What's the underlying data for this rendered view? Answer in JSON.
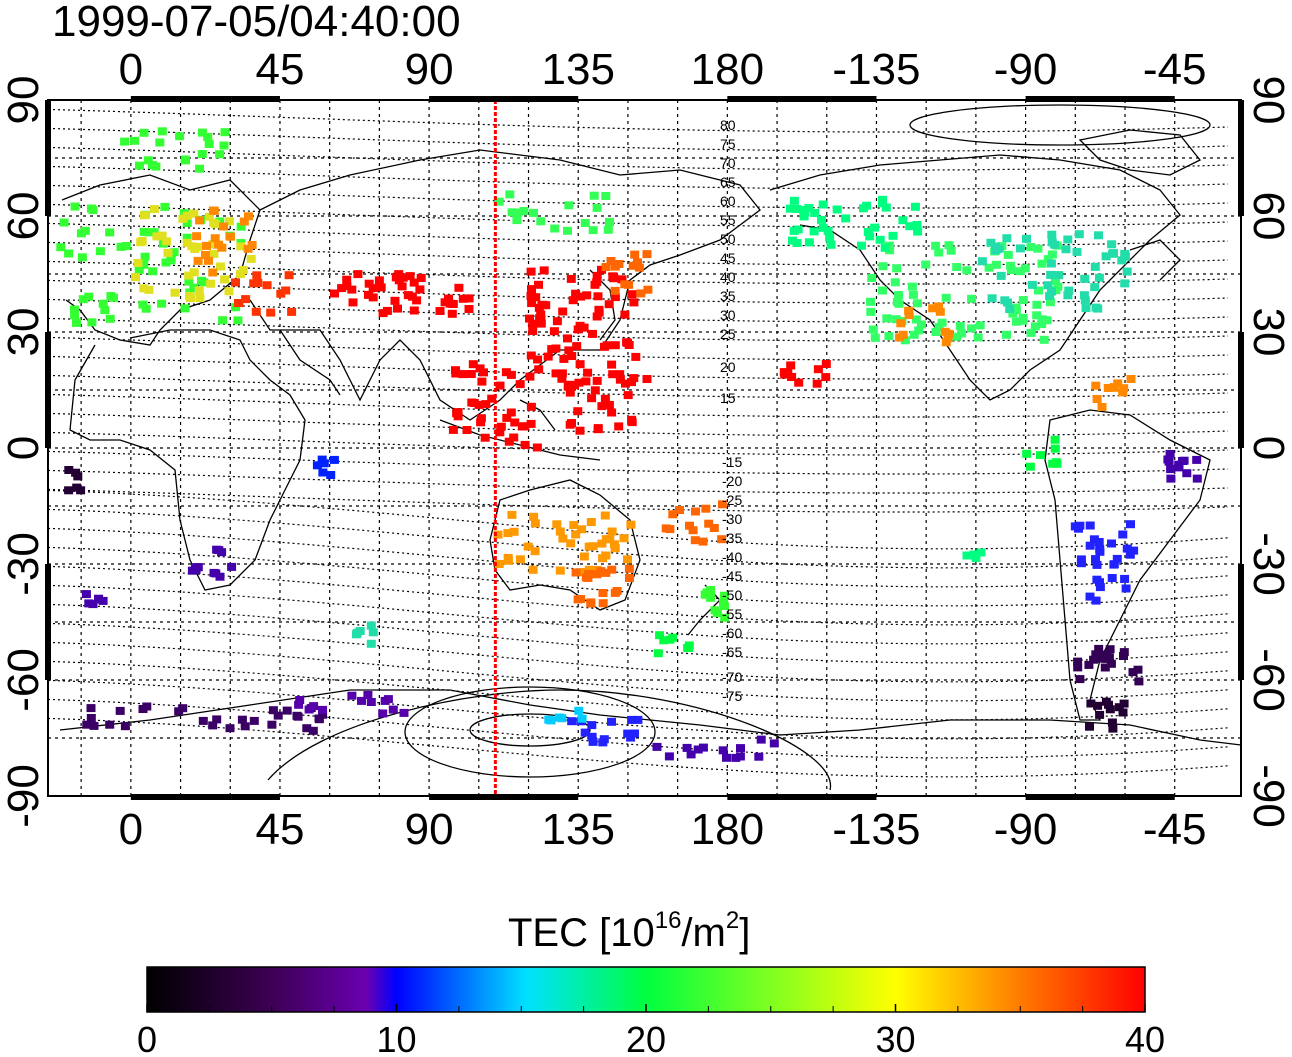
{
  "title": "1999-07-05/04:40:00",
  "map": {
    "lon_ticks": [
      "0",
      "45",
      "90",
      "135",
      "180",
      "-135",
      "-90",
      "-45"
    ],
    "lat_ticks": [
      "90",
      "60",
      "30",
      "0",
      "-30",
      "-60",
      "-90"
    ],
    "noon_meridian_lon": 110,
    "contour_labels_north": [
      "80",
      "75",
      "70",
      "65",
      "60",
      "55",
      "50",
      "45",
      "40",
      "35",
      "30",
      "25",
      "20",
      "15"
    ],
    "contour_labels_south": [
      "-15",
      "-20",
      "-25",
      "-30",
      "-35",
      "-40",
      "-45",
      "-50",
      "-55",
      "-60",
      "-65",
      "-70",
      "-75"
    ],
    "data_color": "#ff0000"
  },
  "colorbar": {
    "label": "TEC  [10",
    "label_exp": "16",
    "label_unit": "/m",
    "label_unit_exp": "2",
    "label_close": "]",
    "tick_labels": [
      "0",
      "10",
      "20",
      "30",
      "40"
    ],
    "range": [
      0,
      40
    ],
    "colors": [
      "#000000",
      "#3a0050",
      "#6a00b0",
      "#0000ff",
      "#00e0ff",
      "#00ff40",
      "#ffff00",
      "#ff8000",
      "#ff0000"
    ]
  }
}
